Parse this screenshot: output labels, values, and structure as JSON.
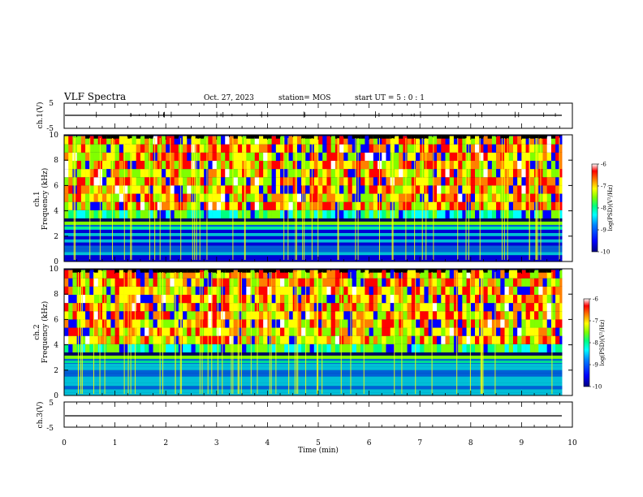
{
  "header": {
    "title": "VLF Spectra",
    "date": "Oct. 27, 2023",
    "station": "station= MOS",
    "start_ut": "start  UT =   5 : 0  : 1"
  },
  "colors": {
    "colormap": [
      "#00007f",
      "#0000ff",
      "#0080ff",
      "#00ffff",
      "#00ff80",
      "#80ff00",
      "#ffff00",
      "#ff8000",
      "#ff0000",
      "#ffffff"
    ],
    "axis": "#000000",
    "background": "#ffffff"
  },
  "chart_data": [
    {
      "type": "line",
      "panel": "ch1-waveform",
      "ylabel": "ch.1(V)",
      "ylim": [
        -5,
        5
      ],
      "y_ticks": [
        "5",
        "-5"
      ],
      "xlim": [
        0,
        10
      ],
      "x": [
        0,
        9.8
      ],
      "values": [
        -2,
        -2
      ],
      "note_visible": "trace near -2 V with small spikes"
    },
    {
      "type": "heatmap",
      "panel": "ch1-spectrogram",
      "ylabel_lines": [
        "ch.1",
        "Frequency (kHz)"
      ],
      "ylim": [
        0,
        10
      ],
      "y_ticks": [
        "0",
        "2",
        "4",
        "6",
        "8",
        "10"
      ],
      "xlim": [
        0,
        10
      ],
      "colorbar": {
        "label": "log(PSD)(V²/Hz)",
        "range": [
          -10,
          -6
        ],
        "ticks": [
          "-6",
          "-7",
          "-8",
          "-9",
          "-10"
        ]
      },
      "bands_khz": {
        "low_noise": [
          0,
          3
        ],
        "line_at": 3,
        "emission": [
          4,
          9.5
        ]
      }
    },
    {
      "type": "heatmap",
      "panel": "ch2-spectrogram",
      "ylabel_lines": [
        "ch.2",
        "Frequency (kHz)"
      ],
      "ylim": [
        0,
        10
      ],
      "y_ticks": [
        "0",
        "2",
        "4",
        "6",
        "8",
        "10"
      ],
      "xlim": [
        0,
        10
      ],
      "colorbar": {
        "label": "log(PSD)(V²/Hz)",
        "range": [
          -10,
          -6
        ],
        "ticks": [
          "-6",
          "-7",
          "-8",
          "-9",
          "-10"
        ]
      },
      "bands_khz": {
        "low_noise": [
          0,
          3
        ],
        "line_at": 3,
        "emission": [
          4,
          9.5
        ]
      }
    },
    {
      "type": "line",
      "panel": "ch3-waveform",
      "ylabel": "ch.3(V)",
      "ylim": [
        -5,
        5
      ],
      "y_ticks": [
        "5",
        "-5"
      ],
      "xlim": [
        0,
        10
      ],
      "x": [
        0,
        9.8
      ],
      "values": [
        -1.8,
        -1.8
      ]
    }
  ],
  "xaxis": {
    "label": "Time (min)",
    "ticks": [
      "0",
      "1",
      "2",
      "3",
      "4",
      "5",
      "6",
      "7",
      "8",
      "9",
      "10"
    ]
  }
}
